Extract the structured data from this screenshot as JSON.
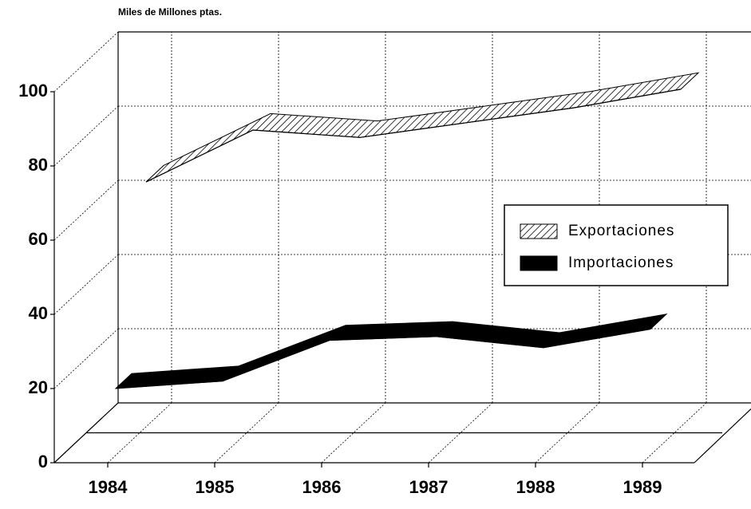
{
  "chart_data": {
    "type": "line3d",
    "y_axis_label": "Miles de Millones ptas.",
    "categories": [
      "1984",
      "1985",
      "1986",
      "1987",
      "1988",
      "1989"
    ],
    "series": [
      {
        "name": "Exportaciones",
        "color": "#ffffff",
        "values": [
          66,
          80,
          78,
          82,
          86,
          91
        ]
      },
      {
        "name": "Importaciones",
        "color": "#000000",
        "values": [
          18,
          20,
          31,
          32,
          29,
          34
        ]
      }
    ],
    "ylim": [
      0,
      100
    ],
    "yticks": [
      0,
      20,
      40,
      60,
      80,
      100
    ],
    "grid": true
  }
}
